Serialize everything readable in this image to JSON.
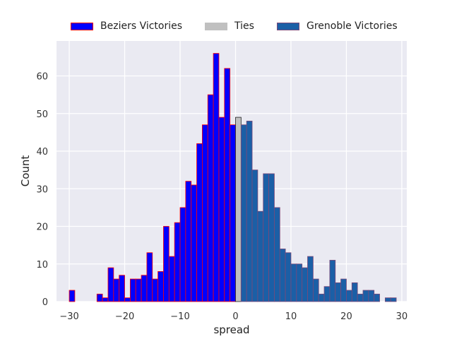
{
  "chart_data": {
    "type": "bar",
    "xlabel": "spread",
    "ylabel": "Count",
    "xlim": [
      -32.3,
      30.9
    ],
    "ylim": [
      0,
      69.3
    ],
    "xticks": [
      -30,
      -20,
      -10,
      0,
      10,
      20,
      30
    ],
    "yticks": [
      0,
      10,
      20,
      30,
      40,
      50,
      60
    ],
    "grid": true,
    "legend_position": "top-center",
    "series": [
      {
        "name": "Beziers Victories",
        "color": "#0000ff",
        "edge_color": "#ff0000",
        "bins": [
          [
            -30,
            3
          ],
          [
            -29,
            0
          ],
          [
            -28,
            0
          ],
          [
            -27,
            0
          ],
          [
            -26,
            0
          ],
          [
            -25,
            2
          ],
          [
            -24,
            1
          ],
          [
            -23,
            9
          ],
          [
            -22,
            6
          ],
          [
            -21,
            7
          ],
          [
            -20,
            1
          ],
          [
            -19,
            6
          ],
          [
            -18,
            6
          ],
          [
            -17,
            7
          ],
          [
            -16,
            13
          ],
          [
            -15,
            6
          ],
          [
            -14,
            8
          ],
          [
            -13,
            20
          ],
          [
            -12,
            12
          ],
          [
            -11,
            21
          ],
          [
            -10,
            25
          ],
          [
            -9,
            32
          ],
          [
            -8,
            31
          ],
          [
            -7,
            42
          ],
          [
            -6,
            47
          ],
          [
            -5,
            55
          ],
          [
            -4,
            66
          ],
          [
            -3,
            49
          ],
          [
            -2,
            62
          ],
          [
            -1,
            47
          ]
        ]
      },
      {
        "name": "Ties",
        "color": "#c0c0c0",
        "edge_color": "#222222",
        "bins": [
          [
            0,
            49
          ]
        ]
      },
      {
        "name": "Grenoble Victories",
        "color": "#1b5fa6",
        "edge_color": "#7a4a7a",
        "bins": [
          [
            1,
            47
          ],
          [
            2,
            48
          ],
          [
            3,
            35
          ],
          [
            4,
            24
          ],
          [
            5,
            34
          ],
          [
            6,
            34
          ],
          [
            7,
            25
          ],
          [
            8,
            14
          ],
          [
            9,
            13
          ],
          [
            10,
            10
          ],
          [
            11,
            10
          ],
          [
            12,
            9
          ],
          [
            13,
            12
          ],
          [
            14,
            6
          ],
          [
            15,
            2
          ],
          [
            16,
            4
          ],
          [
            17,
            11
          ],
          [
            18,
            5
          ],
          [
            19,
            6
          ],
          [
            20,
            3
          ],
          [
            21,
            5
          ],
          [
            22,
            2
          ],
          [
            23,
            3
          ],
          [
            24,
            3
          ],
          [
            25,
            2
          ],
          [
            26,
            0
          ],
          [
            27,
            1
          ],
          [
            28,
            1
          ]
        ]
      }
    ]
  }
}
